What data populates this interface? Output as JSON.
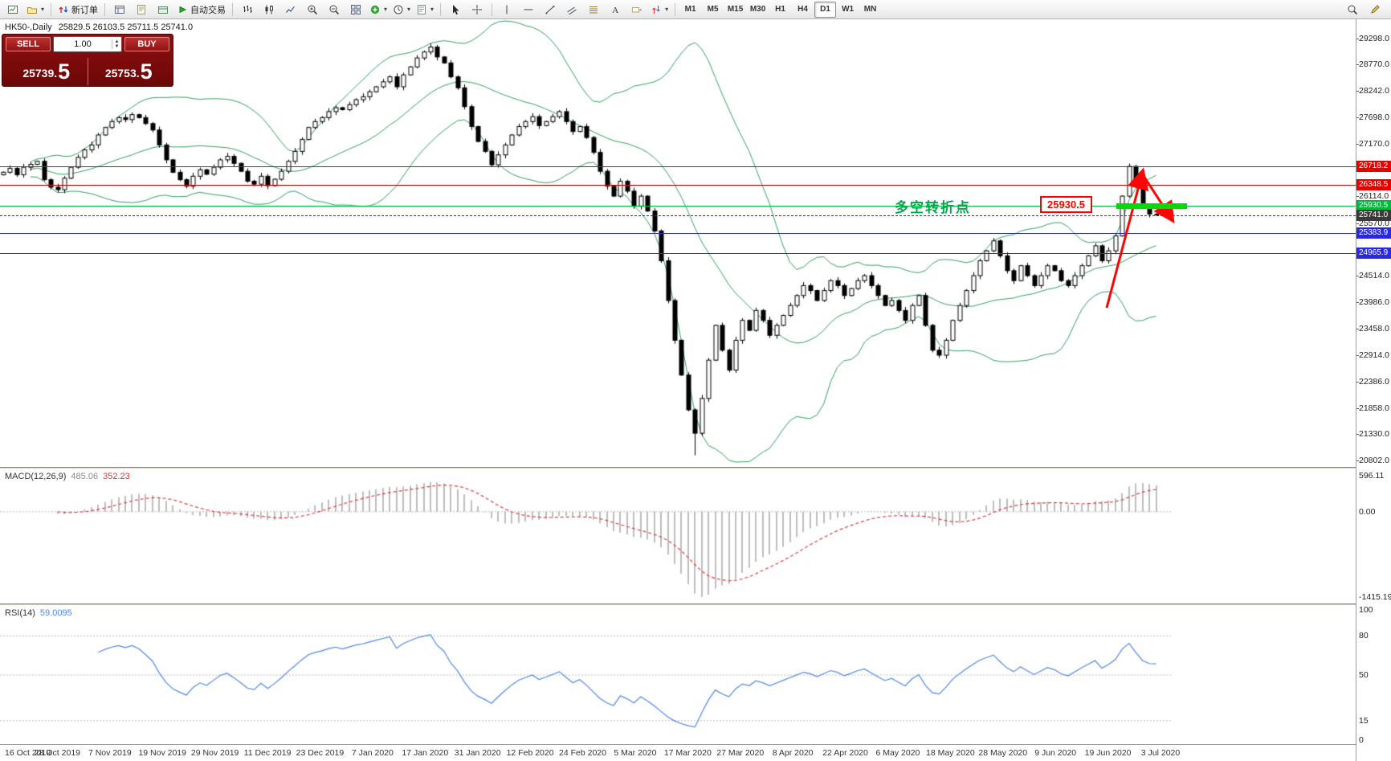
{
  "toolbar": {
    "groups": [
      {
        "buttons": [
          {
            "name": "new-chart-button",
            "icon": "new-chart"
          },
          {
            "name": "profiles-button",
            "icon": "profiles",
            "caret": true
          }
        ]
      },
      {
        "buttons": [
          {
            "name": "new-order-button",
            "icon": "new-order",
            "label": "新订单"
          }
        ]
      },
      {
        "buttons": [
          {
            "name": "market-watch-button",
            "icon": "market-watch"
          },
          {
            "name": "navigator-button",
            "icon": "navigator"
          },
          {
            "name": "terminal-button",
            "icon": "terminal"
          },
          {
            "name": "autotrading-button",
            "icon": "autotrade",
            "label": "自动交易"
          }
        ]
      },
      {
        "buttons": [
          {
            "name": "bar-chart-button",
            "icon": "bars"
          },
          {
            "name": "candlestick-chart-button",
            "icon": "candles"
          },
          {
            "name": "line-chart-button",
            "icon": "line"
          },
          {
            "name": "zoom-in-button",
            "icon": "zoom-in"
          },
          {
            "name": "zoom-out-button",
            "icon": "zoom-out"
          },
          {
            "name": "tile-windows-button",
            "icon": "tile"
          },
          {
            "name": "indicators-button",
            "icon": "indicators",
            "caret": true
          },
          {
            "name": "periods-button",
            "icon": "clock",
            "caret": true
          },
          {
            "name": "templates-button",
            "icon": "template",
            "caret": true
          }
        ]
      },
      {
        "buttons": [
          {
            "name": "cursor-button",
            "icon": "cursor"
          },
          {
            "name": "crosshair-button",
            "icon": "crosshair"
          }
        ]
      },
      {
        "buttons": [
          {
            "name": "vertical-line-button",
            "icon": "vline"
          },
          {
            "name": "horizontal-line-button",
            "icon": "hline"
          },
          {
            "name": "trendline-button",
            "icon": "trendline"
          },
          {
            "name": "channel-button",
            "icon": "channel"
          },
          {
            "name": "fibonacci-button",
            "icon": "fibo"
          },
          {
            "name": "text-button",
            "icon": "text"
          },
          {
            "name": "label-button",
            "icon": "label"
          },
          {
            "name": "arrows-button",
            "icon": "arrows",
            "caret": true
          }
        ]
      }
    ],
    "timeframes": [
      "M1",
      "M5",
      "M15",
      "M30",
      "H1",
      "H4",
      "D1",
      "W1",
      "MN"
    ],
    "active_timeframe": "D1",
    "right_buttons": [
      {
        "name": "search-button",
        "icon": "search"
      },
      {
        "name": "edit-button",
        "icon": "edit"
      }
    ]
  },
  "quote_panel": {
    "sell_label": "SELL",
    "buy_label": "BUY",
    "volume": "1.00",
    "sell_price_main": "25739.",
    "sell_price_big": "5",
    "buy_price_main": "25753.",
    "buy_price_big": "5"
  },
  "chart": {
    "title": "HK50-,Daily",
    "ohlc": "25829.5 26103.5 25711.5 25741.0",
    "first_open": 26550,
    "price_axis": {
      "max": 29298.0,
      "min": 20802.0,
      "ticks": [
        "29298.0",
        "28770.0",
        "28242.0",
        "27698.0",
        "27170.0",
        "26114.0",
        "25570.0",
        "24514.0",
        "23986.0",
        "23458.0",
        "22914.0",
        "22386.0",
        "21858.0",
        "21330.0",
        "20802.0"
      ]
    },
    "levels": [
      {
        "name": "resistance-line-1",
        "price": 26718.2,
        "label": "26718.2",
        "color": "#e60000",
        "style": "solid"
      },
      {
        "name": "resistance-line-2",
        "price": 26348.5,
        "label": "26348.5",
        "color": "#e60000",
        "style": "solid"
      },
      {
        "name": "pivot-line",
        "price": 25930.5,
        "label": "25930.5",
        "color": "#00b83c",
        "style": "solid"
      },
      {
        "name": "current-price-line",
        "price": 25741.0,
        "label": "25741.0",
        "color": "#3a3a3a",
        "style": "dashed"
      },
      {
        "name": "support-line-1",
        "price": 25383.9,
        "label": "25383.9",
        "color": "#2929e0",
        "style": "solid"
      },
      {
        "name": "support-line-2",
        "price": 24965.9,
        "label": "24965.9",
        "color": "#2929e0",
        "style": "solid"
      }
    ],
    "dates": [
      "16 Oct 2019",
      "28 Oct 2019",
      "7 Nov 2019",
      "19 Nov 2019",
      "29 Nov 2019",
      "11 Dec 2019",
      "23 Dec 2019",
      "7 Jan 2020",
      "17 Jan 2020",
      "31 Jan 2020",
      "12 Feb 2020",
      "24 Feb 2020",
      "5 Mar 2020",
      "17 Mar 2020",
      "27 Mar 2020",
      "8 Apr 2020",
      "22 Apr 2020",
      "6 May 2020",
      "18 May 2020",
      "28 May 2020",
      "9 Jun 2020",
      "19 Jun 2020",
      "3 Jul 2020"
    ],
    "closes": [
      26600,
      26680,
      26550,
      26700,
      26760,
      26820,
      26450,
      26300,
      26250,
      26480,
      26700,
      26900,
      27050,
      27150,
      27350,
      27500,
      27620,
      27700,
      27660,
      27760,
      27700,
      27580,
      27450,
      27150,
      26850,
      26600,
      26450,
      26320,
      26520,
      26650,
      26560,
      26700,
      26850,
      26920,
      26780,
      26620,
      26420,
      26360,
      26520,
      26330,
      26460,
      26620,
      26820,
      27020,
      27260,
      27500,
      27620,
      27700,
      27820,
      27900,
      27860,
      27960,
      28060,
      28120,
      28220,
      28320,
      28420,
      28520,
      28320,
      28560,
      28720,
      28900,
      29020,
      29120,
      28920,
      28800,
      28520,
      28300,
      27920,
      27520,
      27220,
      27020,
      26750,
      26950,
      27150,
      27350,
      27520,
      27620,
      27720,
      27540,
      27620,
      27720,
      27820,
      27620,
      27420,
      27520,
      27300,
      27000,
      26620,
      26320,
      26120,
      26420,
      26220,
      25920,
      26120,
      25820,
      25420,
      24820,
      24020,
      23220,
      22520,
      21820,
      21350,
      22050,
      22820,
      23520,
      23020,
      22620,
      23220,
      23620,
      23420,
      23820,
      23620,
      23320,
      23520,
      23720,
      23920,
      24120,
      24320,
      24220,
      24020,
      24220,
      24420,
      24320,
      24120,
      24260,
      24420,
      24520,
      24320,
      24120,
      23920,
      24020,
      23820,
      23620,
      23920,
      24120,
      23520,
      23020,
      22920,
      23220,
      23620,
      23920,
      24220,
      24520,
      24820,
      25020,
      25220,
      24920,
      24620,
      24420,
      24720,
      24520,
      24320,
      24520,
      24720,
      24620,
      24420,
      24320,
      24520,
      24720,
      24920,
      25120,
      24820,
      25020,
      25320,
      26120,
      26718,
      26320,
      25920,
      25760,
      25741
    ]
  },
  "annotations": {
    "pivot_text": "多空转折点",
    "price_box": "25930.5"
  },
  "macd": {
    "label": "MACD(12,26,9)",
    "main_value": "485.06",
    "signal_value": "352.23",
    "axis_max": "596.11",
    "axis_zero": "0.00",
    "axis_min": "-1415.19"
  },
  "rsi": {
    "label": "RSI(14)",
    "value": "59.0095",
    "levels": [
      "100",
      "80",
      "50",
      "15",
      "0"
    ]
  },
  "colors": {
    "band": "#2f9e63",
    "bull": "#ffffff",
    "bear": "#000000",
    "wick": "#000000",
    "macd_hist": "#bdbdbd",
    "macd_signal": "#e23a3a",
    "rsi_line": "#4f86e8",
    "arrow": "#ff0404",
    "highlight": "#00dc00",
    "pivot_text": "#00a848",
    "grid_dotted": "#b8b8b8"
  }
}
